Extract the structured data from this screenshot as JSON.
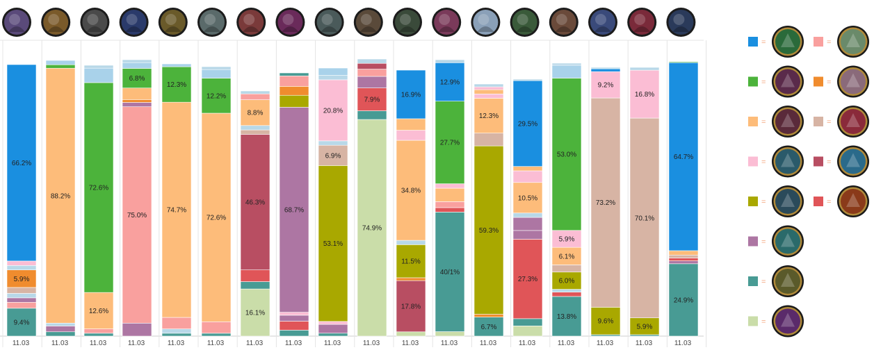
{
  "chart_data": {
    "type": "bar",
    "stacked": true,
    "normalized": true,
    "x_tick_label": "11.03",
    "bars": [
      {
        "segments": [
          {
            "c": "c13",
            "v": 9.4
          },
          {
            "c": "c4",
            "v": 2.0
          },
          {
            "c": "c11",
            "v": 1.5
          },
          {
            "c": "c3",
            "v": 1.5
          },
          {
            "c": "c8",
            "v": 2.0
          },
          {
            "c": "c6",
            "v": 5.9
          },
          {
            "c": "c3",
            "v": 1.5
          },
          {
            "c": "c12",
            "v": 1.5
          },
          {
            "c": "c1",
            "v": 66.2
          }
        ],
        "labels": [
          "9.4%",
          "",
          "",
          "",
          "",
          "5.9%",
          "",
          "",
          "66.2%"
        ]
      },
      {
        "segments": [
          {
            "c": "c13",
            "v": 1.5
          },
          {
            "c": "c11",
            "v": 2.0
          },
          {
            "c": "c3",
            "v": 1.0
          },
          {
            "c": "c5",
            "v": 88.2
          },
          {
            "c": "c2",
            "v": 1.2
          },
          {
            "c": "c14",
            "v": 1.5
          }
        ],
        "labels": [
          "",
          "",
          "",
          "88.2%",
          "",
          ""
        ]
      },
      {
        "segments": [
          {
            "c": "c13",
            "v": 1.0
          },
          {
            "c": "c4",
            "v": 1.5
          },
          {
            "c": "c5",
            "v": 12.6
          },
          {
            "c": "c2",
            "v": 72.6
          },
          {
            "c": "c14",
            "v": 5.0
          },
          {
            "c": "c3",
            "v": 1.0
          }
        ],
        "labels": [
          "",
          "",
          "12.6%",
          "72.6%",
          "",
          ""
        ]
      },
      {
        "segments": [
          {
            "c": "c11",
            "v": 4.5
          },
          {
            "c": "c4",
            "v": 75.0
          },
          {
            "c": "c11",
            "v": 1.5
          },
          {
            "c": "c6",
            "v": 1.0
          },
          {
            "c": "c5",
            "v": 4.0
          },
          {
            "c": "c2",
            "v": 6.8
          },
          {
            "c": "c14",
            "v": 2.0
          },
          {
            "c": "c3",
            "v": 1.0
          }
        ],
        "labels": [
          "",
          "75.0%",
          "",
          "",
          "",
          "6.8%",
          "",
          ""
        ]
      },
      {
        "segments": [
          {
            "c": "c13",
            "v": 1.0
          },
          {
            "c": "c3",
            "v": 1.5
          },
          {
            "c": "c4",
            "v": 4.0
          },
          {
            "c": "c5",
            "v": 74.7
          },
          {
            "c": "c2",
            "v": 12.3
          },
          {
            "c": "c14",
            "v": 1.0
          }
        ],
        "labels": [
          "",
          "",
          "",
          "74.7%",
          "12.3%",
          ""
        ]
      },
      {
        "segments": [
          {
            "c": "c13",
            "v": 1.0
          },
          {
            "c": "c4",
            "v": 4.0
          },
          {
            "c": "c5",
            "v": 72.6
          },
          {
            "c": "c2",
            "v": 12.2
          },
          {
            "c": "c14",
            "v": 3.0
          },
          {
            "c": "c3",
            "v": 1.0
          }
        ],
        "labels": [
          "",
          "",
          "72.6%",
          "12.2%",
          "",
          ""
        ]
      },
      {
        "segments": [
          {
            "c": "c15",
            "v": 16.1
          },
          {
            "c": "c13",
            "v": 2.5
          },
          {
            "c": "c10",
            "v": 4.0
          },
          {
            "c": "c7",
            "v": 46.3
          },
          {
            "c": "c8",
            "v": 1.5
          },
          {
            "c": "c3",
            "v": 1.5
          },
          {
            "c": "c5",
            "v": 8.8
          },
          {
            "c": "c4",
            "v": 2.0
          },
          {
            "c": "c3",
            "v": 1.0
          }
        ],
        "labels": [
          "16.1%",
          "",
          "",
          "46.3%",
          "",
          "",
          "8.8%",
          "",
          ""
        ]
      },
      {
        "segments": [
          {
            "c": "c13",
            "v": 2.0
          },
          {
            "c": "c10",
            "v": 3.0
          },
          {
            "c": "c11",
            "v": 2.0
          },
          {
            "c": "c12",
            "v": 1.0
          },
          {
            "c": "c11",
            "v": 68.7
          },
          {
            "c": "c9",
            "v": 4.0
          },
          {
            "c": "c6",
            "v": 3.0
          },
          {
            "c": "c4",
            "v": 3.5
          },
          {
            "c": "c13",
            "v": 1.0
          }
        ],
        "labels": [
          "",
          "",
          "",
          "",
          "68.7%",
          "",
          "",
          "",
          ""
        ]
      },
      {
        "segments": [
          {
            "c": "c13",
            "v": 1.0
          },
          {
            "c": "c11",
            "v": 3.0
          },
          {
            "c": "c12",
            "v": 1.0
          },
          {
            "c": "c9",
            "v": 53.1
          },
          {
            "c": "c8",
            "v": 6.9
          },
          {
            "c": "c3",
            "v": 1.5
          },
          {
            "c": "c12",
            "v": 20.8
          },
          {
            "c": "c3",
            "v": 1.5
          },
          {
            "c": "c14",
            "v": 2.5
          }
        ],
        "labels": [
          "",
          "",
          "",
          "53.1%",
          "6.9%",
          "",
          "20.8%",
          "",
          ""
        ]
      },
      {
        "segments": [
          {
            "c": "c15",
            "v": 74.9
          },
          {
            "c": "c13",
            "v": 3.0
          },
          {
            "c": "c10",
            "v": 7.9
          },
          {
            "c": "c11",
            "v": 4.0
          },
          {
            "c": "c4",
            "v": 2.5
          },
          {
            "c": "c7",
            "v": 2.0
          },
          {
            "c": "c3",
            "v": 1.5
          }
        ],
        "labels": [
          "74.9%",
          "",
          "7.9%",
          "",
          "",
          "",
          ""
        ]
      },
      {
        "segments": [
          {
            "c": "c15",
            "v": 1.5
          },
          {
            "c": "c7",
            "v": 17.8
          },
          {
            "c": "c6",
            "v": 1.0
          },
          {
            "c": "c9",
            "v": 11.5
          },
          {
            "c": "c3",
            "v": 1.5
          },
          {
            "c": "c5",
            "v": 34.8
          },
          {
            "c": "c12",
            "v": 3.5
          },
          {
            "c": "c5",
            "v": 4.0
          },
          {
            "c": "c1",
            "v": 16.9
          }
        ],
        "labels": [
          "",
          "17.8%",
          "",
          "11.5%",
          "",
          "34.8%",
          "",
          "",
          "16.9%"
        ]
      },
      {
        "segments": [
          {
            "c": "c15",
            "v": 1.5
          },
          {
            "c": "c13",
            "v": 40.1
          },
          {
            "c": "c10",
            "v": 1.5
          },
          {
            "c": "c4",
            "v": 2.0
          },
          {
            "c": "c5",
            "v": 4.5
          },
          {
            "c": "c12",
            "v": 1.5
          },
          {
            "c": "c2",
            "v": 27.7
          },
          {
            "c": "c1",
            "v": 12.9
          },
          {
            "c": "c3",
            "v": 1.0
          }
        ],
        "labels": [
          "",
          "40/1%",
          "",
          "",
          "",
          "",
          "27.7%",
          "12.9%",
          ""
        ]
      },
      {
        "segments": [
          {
            "c": "c13",
            "v": 6.7
          },
          {
            "c": "c6",
            "v": 1.0
          },
          {
            "c": "c9",
            "v": 59.3
          },
          {
            "c": "c8",
            "v": 4.5
          },
          {
            "c": "c5",
            "v": 12.3
          },
          {
            "c": "c12",
            "v": 1.5
          },
          {
            "c": "c5",
            "v": 1.5
          },
          {
            "c": "c12",
            "v": 1.0
          },
          {
            "c": "c3",
            "v": 1.0
          }
        ],
        "labels": [
          "6.7%",
          "",
          "59.3%",
          "",
          "12.3%",
          "",
          "",
          "",
          ""
        ]
      },
      {
        "segments": [
          {
            "c": "c15",
            "v": 3.5
          },
          {
            "c": "c13",
            "v": 2.5
          },
          {
            "c": "c10",
            "v": 27.3
          },
          {
            "c": "c11",
            "v": 3.0
          },
          {
            "c": "c11",
            "v": 4.5
          },
          {
            "c": "c3",
            "v": 1.5
          },
          {
            "c": "c5",
            "v": 10.5
          },
          {
            "c": "c12",
            "v": 4.0
          },
          {
            "c": "c5",
            "v": 1.5
          },
          {
            "c": "c1",
            "v": 29.5
          },
          {
            "c": "c3",
            "v": 0.5
          }
        ],
        "labels": [
          "",
          "",
          "27.3%",
          "",
          "",
          "",
          "10.5%",
          "",
          "",
          "29.5%",
          ""
        ]
      },
      {
        "segments": [
          {
            "c": "c13",
            "v": 13.8
          },
          {
            "c": "c10",
            "v": 1.5
          },
          {
            "c": "c3",
            "v": 1.0
          },
          {
            "c": "c9",
            "v": 6.0
          },
          {
            "c": "c8",
            "v": 2.5
          },
          {
            "c": "c5",
            "v": 6.1
          },
          {
            "c": "c12",
            "v": 5.9
          },
          {
            "c": "c2",
            "v": 53.0
          },
          {
            "c": "c14",
            "v": 4.5
          },
          {
            "c": "c3",
            "v": 0.7
          }
        ],
        "labels": [
          "13.8%",
          "",
          "",
          "6.0%",
          "",
          "6.1%",
          "5.9%",
          "53.0%",
          "",
          ""
        ]
      },
      {
        "segments": [
          {
            "c": "c13",
            "v": 0.5
          },
          {
            "c": "c9",
            "v": 9.6
          },
          {
            "c": "c8",
            "v": 73.2
          },
          {
            "c": "c12",
            "v": 9.2
          },
          {
            "c": "c1",
            "v": 1.0
          },
          {
            "c": "c3",
            "v": 0.5
          }
        ],
        "labels": [
          "",
          "9.6%",
          "73.2%",
          "9.2%",
          "",
          ""
        ]
      },
      {
        "segments": [
          {
            "c": "c13",
            "v": 0.5
          },
          {
            "c": "c9",
            "v": 5.9
          },
          {
            "c": "c8",
            "v": 70.1
          },
          {
            "c": "c12",
            "v": 16.8
          },
          {
            "c": "c3",
            "v": 1.0
          }
        ],
        "labels": [
          "",
          "5.9%",
          "70.1%",
          "16.8%",
          ""
        ]
      },
      {
        "segments": [
          {
            "c": "c13",
            "v": 24.9
          },
          {
            "c": "c11",
            "v": 1.0
          },
          {
            "c": "c10",
            "v": 1.0
          },
          {
            "c": "c8",
            "v": 1.0
          },
          {
            "c": "c5",
            "v": 1.5
          },
          {
            "c": "c1",
            "v": 64.7
          },
          {
            "c": "c2",
            "v": 0.3
          }
        ],
        "labels": [
          "24.9%",
          "",
          "",
          "",
          "",
          "64.7%",
          ""
        ]
      }
    ],
    "legend": {
      "equals_symbol": "=",
      "rows": [
        [
          "c1",
          "c4"
        ],
        [
          "c2",
          "c6"
        ],
        [
          "c5",
          "c8"
        ],
        [
          "c12",
          "c7"
        ],
        [
          "c9",
          "c10"
        ],
        [
          "c11"
        ],
        [
          "c13"
        ],
        [
          "c15"
        ]
      ]
    },
    "colors": {
      "c1": "#1a8fe0",
      "c2": "#4cb33b",
      "c3": "#b8d8e8",
      "c4": "#f9a09e",
      "c5": "#fdbc7a",
      "c6": "#f08c2e",
      "c7": "#b84e62",
      "c8": "#d7b4a4",
      "c9": "#a9a800",
      "c10": "#e05558",
      "c11": "#ad76a3",
      "c12": "#fbbdd4",
      "c13": "#489b94",
      "c14": "#a9d2ea",
      "c15": "#cadda9",
      "grid_line": "#e4e4e4",
      "legend_equals": "#f4a37a"
    },
    "header_icons": [
      "portrait-icon",
      "portrait-icon",
      "portrait-icon",
      "portrait-icon",
      "portrait-icon",
      "portrait-icon",
      "portrait-icon",
      "portrait-icon",
      "portrait-icon",
      "portrait-icon",
      "portrait-icon",
      "portrait-icon",
      "portrait-icon",
      "portrait-icon",
      "portrait-icon",
      "portrait-icon",
      "portrait-icon",
      "portrait-icon"
    ],
    "portrait_tints": [
      "#5a4a7a",
      "#7a5a2a",
      "#4a4a4a",
      "#2a3a6a",
      "#6a5a2a",
      "#5a6a6a",
      "#7a3a3a",
      "#6a2a5a",
      "#4a5a5a",
      "#5a4a3a",
      "#3a4a3a",
      "#7a3a5a",
      "#8aa0b8",
      "#3a5a3a",
      "#6a4a3a",
      "#3a4a7a",
      "#7a2a3a",
      "#2a3a5a"
    ],
    "legend_tints": {
      "c1": "#2a6a3a",
      "c4": "#6a8a6a",
      "c2": "#5a2a4a",
      "c6": "#8a6a7a",
      "c5": "#5a2a3a",
      "c8": "#8a2a3a",
      "c12": "#2a5a6a",
      "c7": "#2a6a8a",
      "c9": "#2a4a5a",
      "c10": "#8a3a1a",
      "c11": "#2a6a6a",
      "c13": "#5a5a2a",
      "c15": "#5a2a6a"
    }
  }
}
